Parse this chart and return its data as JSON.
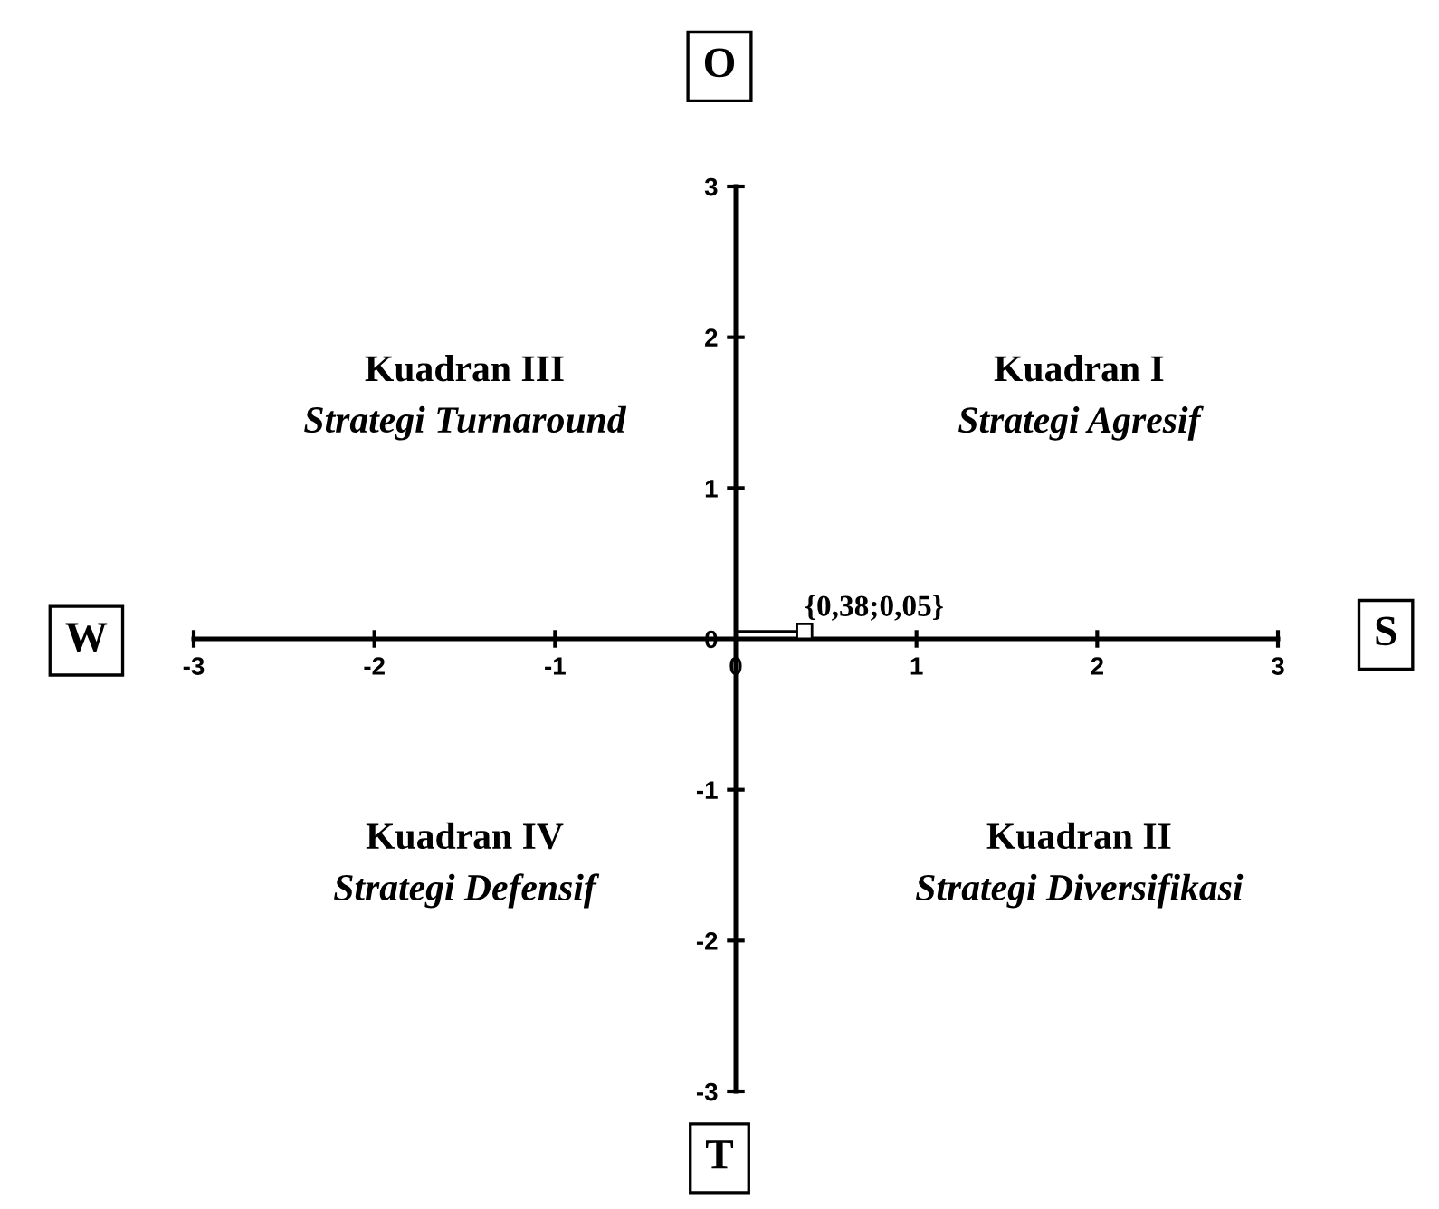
{
  "chart_data": {
    "type": "scatter",
    "series": [
      {
        "x": [
          0.38
        ],
        "values": [
          0.05
        ],
        "color": "#000000",
        "value_labels": [
          "{0,38;0,05}"
        ]
      }
    ],
    "xlim": [
      -3,
      3
    ],
    "ylim": [
      -3,
      3
    ],
    "xticks": [
      -3,
      -2,
      -1,
      0,
      1,
      2,
      3
    ],
    "yticks": [
      -3,
      -2,
      -1,
      0,
      1,
      2,
      3
    ],
    "grid": false,
    "marker": "square",
    "annotations": [
      "O",
      "W",
      "S",
      "T",
      "Kuadran III\nStrategi Turnaround",
      "Kuadran I\nStrategi Agresif",
      "Kuadran IV\nStrategi Defensif",
      "Kuadran II\nStrategi Diversifikasi"
    ]
  }
}
